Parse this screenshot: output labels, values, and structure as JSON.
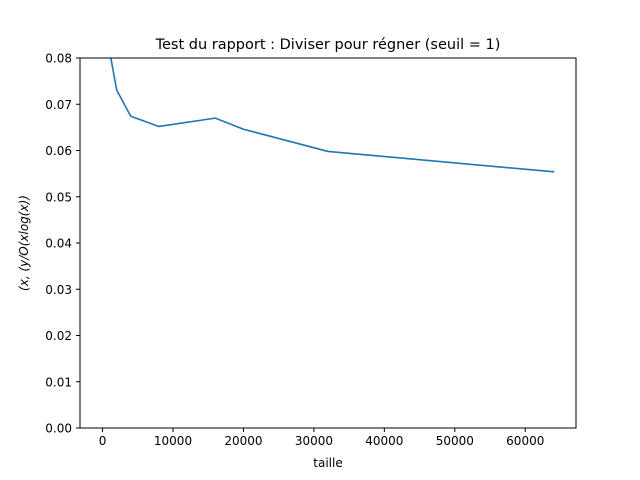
{
  "chart_data": {
    "type": "line",
    "title": "Test du rapport : Diviser pour régner (seuil = 1)",
    "xlabel": "taille",
    "ylabel": "(x, (y/O(xlog(x))",
    "xlim": [
      -3200,
      67200
    ],
    "ylim": [
      0,
      0.08
    ],
    "x_ticks": [
      0,
      10000,
      20000,
      30000,
      40000,
      50000,
      60000
    ],
    "x_tick_labels": [
      "0",
      "10000",
      "20000",
      "30000",
      "40000",
      "50000",
      "60000"
    ],
    "y_ticks": [
      0,
      0.01,
      0.02,
      0.03,
      0.04,
      0.05,
      0.06,
      0.07,
      0.08
    ],
    "y_tick_labels": [
      "0.00",
      "0.01",
      "0.02",
      "0.03",
      "0.04",
      "0.05",
      "0.06",
      "0.07",
      "0.08"
    ],
    "grid": false,
    "series": [
      {
        "color": "#1f77b4",
        "x": [
          1000,
          2000,
          4000,
          8000,
          16000,
          20000,
          32000,
          64000
        ],
        "y": [
          0.0815,
          0.0731,
          0.0674,
          0.0652,
          0.067,
          0.0646,
          0.0598,
          0.0554
        ]
      }
    ]
  }
}
